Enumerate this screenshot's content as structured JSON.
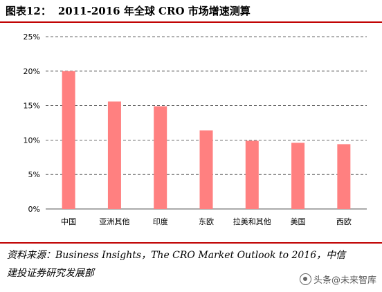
{
  "header": {
    "figure_label": "图表12：",
    "title": "2011-2016 年全球 CRO 市场增速测算"
  },
  "chart_data": {
    "type": "bar",
    "categories": [
      "中国",
      "亚洲其他",
      "印度",
      "东欧",
      "拉美和其他",
      "美国",
      "西欧"
    ],
    "values": [
      20.0,
      15.6,
      14.9,
      11.4,
      9.9,
      9.6,
      9.4
    ],
    "ylim": [
      0,
      25
    ],
    "y_ticks": [
      "0%",
      "5%",
      "10%",
      "15%",
      "20%",
      "25%"
    ],
    "y_tick_values": [
      0,
      5,
      10,
      15,
      20,
      25
    ],
    "grid": "dashed horizontal",
    "bar_color": "#ff8080",
    "title": "",
    "xlabel": "",
    "ylabel": ""
  },
  "footer": {
    "source_line1": "资料来源：Business Insights，The CRO Market Outlook to 2016，中信",
    "source_line2": "建投证券研究发展部",
    "watermark": "头条@未来智库"
  }
}
